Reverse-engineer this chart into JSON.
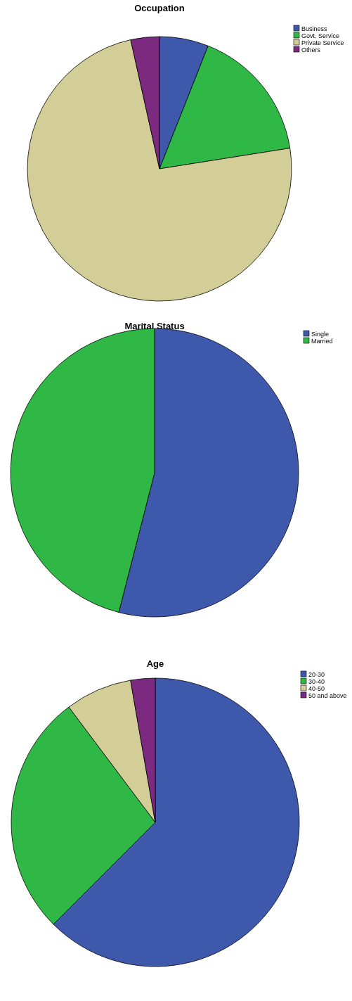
{
  "chart_data": [
    {
      "type": "pie",
      "title": "Occupation",
      "categories": [
        "Business",
        "Govt. Service",
        "Private Service",
        "Others"
      ],
      "values": [
        6,
        16.5,
        74,
        3.5
      ],
      "colors": [
        "#3e58ac",
        "#2fb846",
        "#d3ce98",
        "#7b2a80"
      ],
      "legend": "top right"
    },
    {
      "type": "pie",
      "title": "Marital Status",
      "categories": [
        "Single",
        "Married"
      ],
      "values": [
        54,
        46
      ],
      "colors": [
        "#3e58ac",
        "#2fb846"
      ],
      "legend": "top right"
    },
    {
      "type": "pie",
      "title": "Age",
      "categories": [
        "20-30",
        "30-40",
        "40-50",
        "50 and above"
      ],
      "values": [
        62.5,
        27.25,
        7.5,
        2.75
      ],
      "colors": [
        "#3e58ac",
        "#2fb846",
        "#d3ce98",
        "#7b2a80"
      ],
      "legend": "top right"
    }
  ]
}
